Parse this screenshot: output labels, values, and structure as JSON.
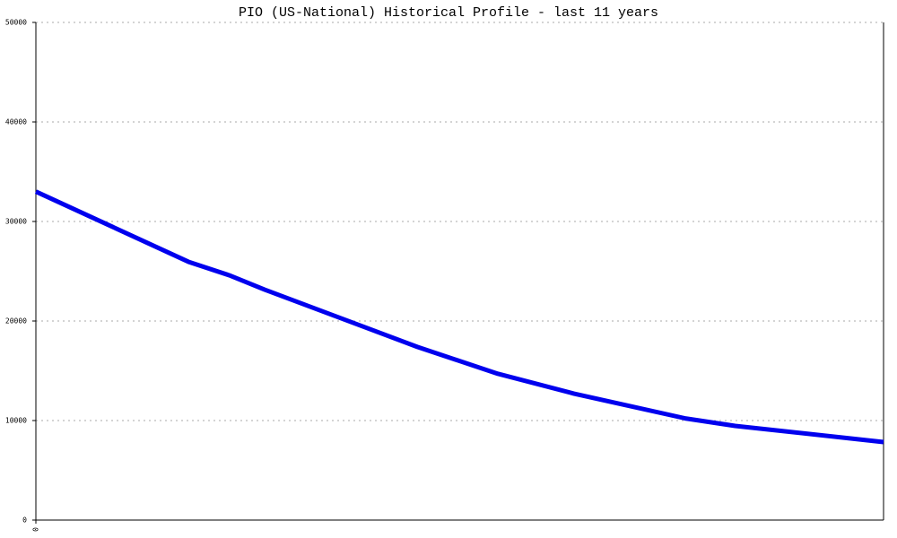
{
  "chart_data": {
    "type": "line",
    "title": "PIO (US-National) Historical Profile - last 11 years",
    "x": [
      0,
      18,
      22.8,
      27,
      45,
      54.5,
      63.5,
      68.8,
      76.7,
      82.5,
      100
    ],
    "series": [
      {
        "name": "PIO",
        "color": "#0000ee",
        "values": [
          33000,
          25950,
          24600,
          23150,
          17400,
          14700,
          12700,
          11700,
          10200,
          9460,
          7840
        ]
      }
    ],
    "xlim": [
      0,
      100
    ],
    "xticks": [
      0
    ],
    "ylim": [
      0,
      50000
    ],
    "yticks": [
      0,
      10000,
      20000,
      30000,
      40000,
      50000
    ],
    "grid": true
  }
}
